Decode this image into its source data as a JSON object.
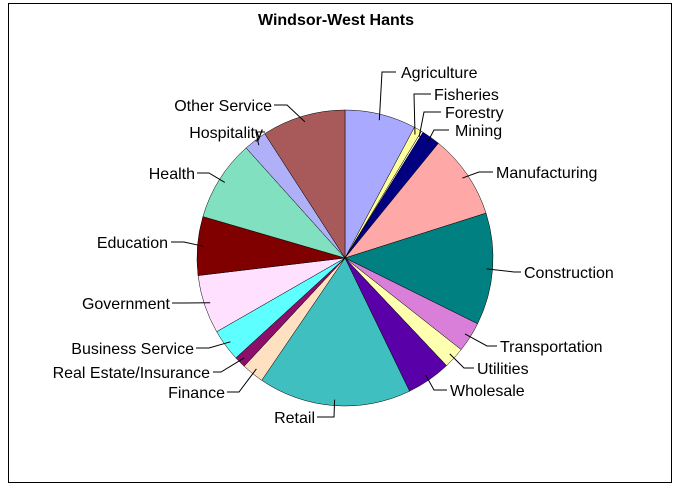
{
  "chart_data": {
    "type": "pie",
    "title": "Windsor-West Hants",
    "start_angle_deg": 0,
    "direction": "clockwise",
    "legend": "none",
    "slices": [
      {
        "label": "Agriculture",
        "value": 8.0,
        "color": "#A9A9FF"
      },
      {
        "label": "Fisheries",
        "value": 0.9,
        "color": "#FFFF9C"
      },
      {
        "label": "Forestry",
        "value": 0.2,
        "color": "#FFFFFF"
      },
      {
        "label": "Mining",
        "value": 2.1,
        "color": "#000080"
      },
      {
        "label": "Manufacturing",
        "value": 9.5,
        "color": "#FFA8A8"
      },
      {
        "label": "Construction",
        "value": 12.6,
        "color": "#008080"
      },
      {
        "label": "Transportation",
        "value": 3.4,
        "color": "#D97FD9"
      },
      {
        "label": "Utilities",
        "value": 2.4,
        "color": "#FFFFB0"
      },
      {
        "label": "Wholesale",
        "value": 5.0,
        "color": "#5A00A8"
      },
      {
        "label": "Retail",
        "value": 17.2,
        "color": "#3FBFBF"
      },
      {
        "label": "Finance",
        "value": 2.5,
        "color": "#FFE0C0"
      },
      {
        "label": "Real Estate/Insurance",
        "value": 1.3,
        "color": "#8B0F6B"
      },
      {
        "label": "Business Service",
        "value": 3.6,
        "color": "#5EFFFF"
      },
      {
        "label": "Government",
        "value": 6.6,
        "color": "#FFE0FF"
      },
      {
        "label": "Education",
        "value": 6.6,
        "color": "#800000"
      },
      {
        "label": "Health",
        "value": 9.1,
        "color": "#80E0C0"
      },
      {
        "label": "Hospitality",
        "value": 2.6,
        "color": "#B0B0F8"
      },
      {
        "label": "Other Service",
        "value": 9.4,
        "color": "#A85A5A"
      }
    ]
  }
}
